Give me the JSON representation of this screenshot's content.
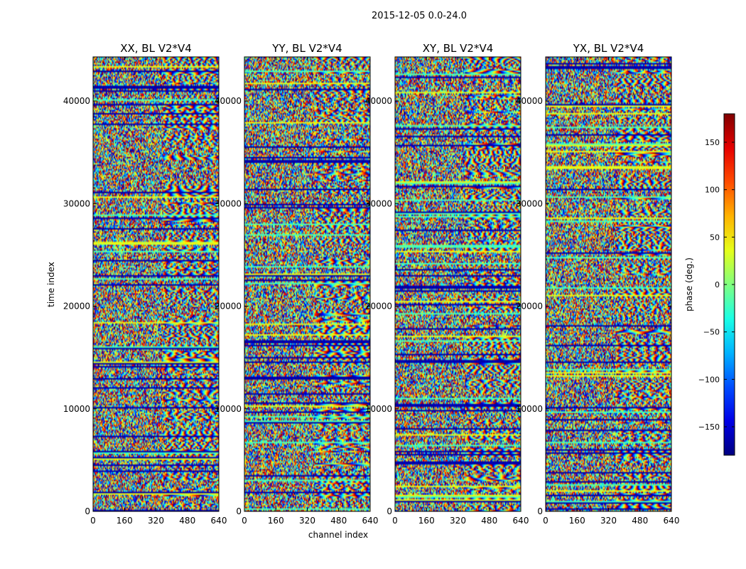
{
  "figure": {
    "title": "2015-12-05 0.0-24.0"
  },
  "chart_data": {
    "type": "heatmap",
    "title": "2015-12-05 0.0-24.0",
    "xlabel": "channel index",
    "ylabel": "time index",
    "xlim": [
      0,
      640
    ],
    "ylim": [
      0,
      44300
    ],
    "x_ticks": [
      "0",
      "160",
      "320",
      "480",
      "640"
    ],
    "y_ticks": [
      "0",
      "10000",
      "20000",
      "30000",
      "40000"
    ],
    "x_tick_values": [
      0,
      160,
      320,
      480,
      640
    ],
    "y_tick_values": [
      0,
      10000,
      20000,
      30000,
      40000
    ],
    "panels": [
      {
        "title": "XX, BL V2*V4",
        "polarization": "XX",
        "baseline": "V2*V4"
      },
      {
        "title": "YY, BL V2*V4",
        "polarization": "YY",
        "baseline": "V2*V4"
      },
      {
        "title": "XY, BL V2*V4",
        "polarization": "XY",
        "baseline": "V2*V4"
      },
      {
        "title": "YX, BL V2*V4",
        "polarization": "YX",
        "baseline": "V2*V4"
      }
    ],
    "colorbar": {
      "label": "phase (deg.)",
      "colormap": "jet",
      "range": [
        -180,
        180
      ],
      "ticks": [
        "150",
        "100",
        "50",
        "0",
        "−50",
        "−100",
        "−150"
      ],
      "tick_values": [
        150,
        100,
        50,
        0,
        -50,
        -100,
        -150
      ]
    }
  }
}
